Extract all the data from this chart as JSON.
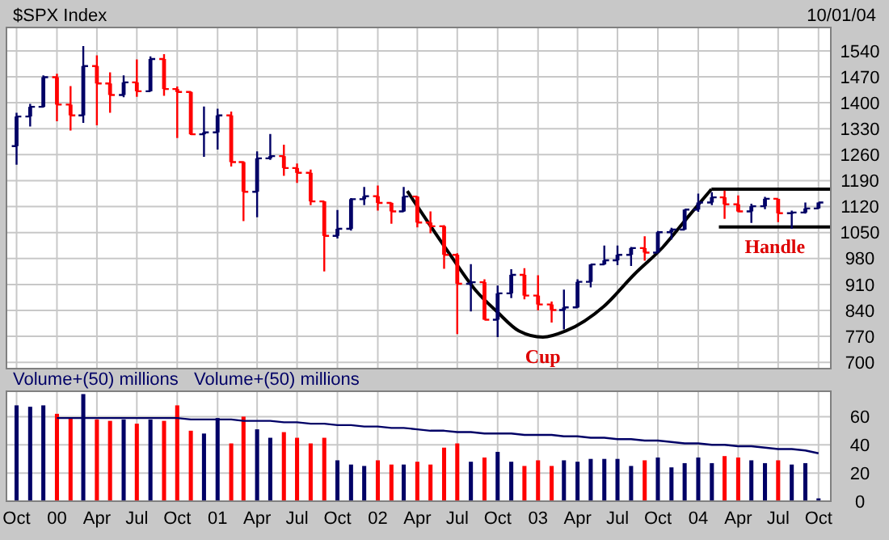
{
  "chart_data": [
    {
      "type": "candlestick",
      "title": "$SPX Index",
      "annotations": [
        "10/01/04",
        "Cup",
        "Handle"
      ],
      "x": [
        "1999-10",
        "1999-11",
        "1999-12",
        "2000-01",
        "2000-02",
        "2000-03",
        "2000-04",
        "2000-05",
        "2000-06",
        "2000-07",
        "2000-08",
        "2000-09",
        "2000-10",
        "2000-11",
        "2000-12",
        "2001-01",
        "2001-02",
        "2001-03",
        "2001-04",
        "2001-05",
        "2001-06",
        "2001-07",
        "2001-08",
        "2001-09",
        "2001-10",
        "2001-11",
        "2001-12",
        "2002-01",
        "2002-02",
        "2002-03",
        "2002-04",
        "2002-05",
        "2002-06",
        "2002-07",
        "2002-08",
        "2002-09",
        "2002-10",
        "2002-11",
        "2002-12",
        "2003-01",
        "2003-02",
        "2003-03",
        "2003-04",
        "2003-05",
        "2003-06",
        "2003-07",
        "2003-08",
        "2003-09",
        "2003-10",
        "2003-11",
        "2003-12",
        "2004-01",
        "2004-02",
        "2004-03",
        "2004-04",
        "2004-05",
        "2004-06",
        "2004-07",
        "2004-08",
        "2004-09",
        "2004-10"
      ],
      "ohlc": [
        [
          1283,
          1373,
          1233,
          1363
        ],
        [
          1363,
          1397,
          1336,
          1389
        ],
        [
          1389,
          1474,
          1387,
          1469
        ],
        [
          1469,
          1478,
          1350,
          1395
        ],
        [
          1395,
          1445,
          1325,
          1366
        ],
        [
          1366,
          1553,
          1346,
          1499
        ],
        [
          1499,
          1528,
          1339,
          1452
        ],
        [
          1452,
          1482,
          1373,
          1421
        ],
        [
          1421,
          1474,
          1415,
          1455
        ],
        [
          1455,
          1517,
          1416,
          1431
        ],
        [
          1431,
          1525,
          1430,
          1518
        ],
        [
          1518,
          1531,
          1419,
          1437
        ],
        [
          1437,
          1444,
          1305,
          1429
        ],
        [
          1429,
          1431,
          1313,
          1315
        ],
        [
          1315,
          1390,
          1254,
          1320
        ],
        [
          1320,
          1384,
          1274,
          1366
        ],
        [
          1366,
          1376,
          1228,
          1240
        ],
        [
          1240,
          1242,
          1081,
          1160
        ],
        [
          1160,
          1269,
          1091,
          1250
        ],
        [
          1250,
          1316,
          1246,
          1256
        ],
        [
          1256,
          1287,
          1203,
          1224
        ],
        [
          1224,
          1236,
          1184,
          1211
        ],
        [
          1211,
          1220,
          1124,
          1134
        ],
        [
          1134,
          1135,
          945,
          1041
        ],
        [
          1041,
          1111,
          1034,
          1060
        ],
        [
          1060,
          1143,
          1055,
          1140
        ],
        [
          1140,
          1173,
          1124,
          1148
        ],
        [
          1148,
          1177,
          1109,
          1130
        ],
        [
          1130,
          1131,
          1074,
          1107
        ],
        [
          1107,
          1173,
          1106,
          1147
        ],
        [
          1147,
          1148,
          1064,
          1077
        ],
        [
          1077,
          1107,
          1048,
          1067
        ],
        [
          1067,
          1070,
          952,
          990
        ],
        [
          990,
          994,
          776,
          912
        ],
        [
          912,
          965,
          837,
          916
        ],
        [
          916,
          924,
          815,
          815
        ],
        [
          815,
          907,
          768,
          886
        ],
        [
          886,
          951,
          873,
          936
        ],
        [
          936,
          954,
          870,
          880
        ],
        [
          880,
          935,
          840,
          856
        ],
        [
          856,
          864,
          807,
          841
        ],
        [
          841,
          896,
          789,
          848
        ],
        [
          848,
          924,
          847,
          917
        ],
        [
          917,
          965,
          902,
          964
        ],
        [
          964,
          1015,
          963,
          975
        ],
        [
          975,
          1015,
          962,
          990
        ],
        [
          990,
          1011,
          960,
          1008
        ],
        [
          1008,
          1040,
          974,
          996
        ],
        [
          996,
          1054,
          996,
          1051
        ],
        [
          1051,
          1063,
          1031,
          1058
        ],
        [
          1058,
          1112,
          1057,
          1112
        ],
        [
          1112,
          1155,
          1106,
          1131
        ],
        [
          1131,
          1159,
          1124,
          1145
        ],
        [
          1145,
          1163,
          1087,
          1126
        ],
        [
          1126,
          1150,
          1105,
          1107
        ],
        [
          1107,
          1128,
          1076,
          1121
        ],
        [
          1121,
          1146,
          1113,
          1141
        ],
        [
          1141,
          1141,
          1078,
          1102
        ],
        [
          1102,
          1109,
          1060,
          1104
        ],
        [
          1104,
          1131,
          1101,
          1115
        ],
        [
          1115,
          1131,
          1114,
          1131
        ]
      ],
      "colors": [
        "#000066",
        "#000066",
        "#000066",
        "#ff0000",
        "#ff0000",
        "#000066",
        "#ff0000",
        "#ff0000",
        "#000066",
        "#ff0000",
        "#000066",
        "#ff0000",
        "#ff0000",
        "#ff0000",
        "#000066",
        "#000066",
        "#ff0000",
        "#ff0000",
        "#000066",
        "#000066",
        "#ff0000",
        "#ff0000",
        "#ff0000",
        "#ff0000",
        "#000066",
        "#000066",
        "#000066",
        "#ff0000",
        "#ff0000",
        "#000066",
        "#ff0000",
        "#ff0000",
        "#ff0000",
        "#ff0000",
        "#000066",
        "#ff0000",
        "#000066",
        "#000066",
        "#ff0000",
        "#ff0000",
        "#ff0000",
        "#000066",
        "#000066",
        "#000066",
        "#000066",
        "#000066",
        "#000066",
        "#ff0000",
        "#000066",
        "#000066",
        "#000066",
        "#000066",
        "#000066",
        "#ff0000",
        "#ff0000",
        "#000066",
        "#000066",
        "#ff0000",
        "#000066",
        "#000066",
        "#000066"
      ],
      "series": [
        {
          "type": "line",
          "color": "#000000",
          "x": [
            "2002-03-09",
            "2002-06-12",
            "2002-08-12",
            "2002-09-30",
            "2002-11-18",
            "2003-01-12",
            "2003-03-06",
            "2003-05-31",
            "2003-08-09",
            "2003-10-12",
            "2003-12-12",
            "2004-01-31"
          ],
          "values": [
            1162,
            995,
            894,
            836,
            785,
            768,
            785,
            851,
            938,
            1010,
            1097,
            1167
          ]
        },
        {
          "type": "line",
          "color": "#000000",
          "x": [
            "2004-01-31",
            "2004-10-29"
          ],
          "values": [
            1167,
            1167
          ]
        },
        {
          "type": "line",
          "color": "#000000",
          "x": [
            "2004-02-17",
            "2004-10-29"
          ],
          "values": [
            1065,
            1065
          ]
        }
      ],
      "xlim": [
        "1999-09-08",
        "2004-10-29"
      ],
      "xticks": [
        {
          "value": "1999-10",
          "label": null
        },
        {
          "value": "2000-01",
          "label": null
        },
        {
          "value": "2000-04",
          "label": null
        },
        {
          "value": "2000-07",
          "label": null
        },
        {
          "value": "2000-10",
          "label": null
        },
        {
          "value": "2001-01",
          "label": null
        },
        {
          "value": "2001-04",
          "label": null
        },
        {
          "value": "2001-07",
          "label": null
        },
        {
          "value": "2001-10",
          "label": null
        },
        {
          "value": "2002-01",
          "label": null
        },
        {
          "value": "2002-04",
          "label": null
        },
        {
          "value": "2002-07",
          "label": null
        },
        {
          "value": "2002-10",
          "label": null
        },
        {
          "value": "2003-01",
          "label": null
        },
        {
          "value": "2003-04",
          "label": null
        },
        {
          "value": "2003-07",
          "label": null
        },
        {
          "value": "2003-10",
          "label": null
        },
        {
          "value": "2004-01",
          "label": null
        },
        {
          "value": "2004-04",
          "label": null
        },
        {
          "value": "2004-07",
          "label": null
        },
        {
          "value": "2004-10",
          "label": null
        }
      ],
      "ylim": [
        683,
        1603
      ],
      "yticks": [
        700,
        770,
        840,
        910,
        980,
        1050,
        1120,
        1190,
        1260,
        1330,
        1400,
        1470,
        1540
      ],
      "grid": true,
      "tick_labels": "y"
    },
    {
      "type": "bar",
      "title": "Volume+(50) millions",
      "annotations": [
        "Volume+(50) millions"
      ],
      "x": [
        "1999-10",
        "1999-11",
        "1999-12",
        "2000-01",
        "2000-02",
        "2000-03",
        "2000-04",
        "2000-05",
        "2000-06",
        "2000-07",
        "2000-08",
        "2000-09",
        "2000-10",
        "2000-11",
        "2000-12",
        "2001-01",
        "2001-02",
        "2001-03",
        "2001-04",
        "2001-05",
        "2001-06",
        "2001-07",
        "2001-08",
        "2001-09",
        "2001-10",
        "2001-11",
        "2001-12",
        "2002-01",
        "2002-02",
        "2002-03",
        "2002-04",
        "2002-05",
        "2002-06",
        "2002-07",
        "2002-08",
        "2002-09",
        "2002-10",
        "2002-11",
        "2002-12",
        "2003-01",
        "2003-02",
        "2003-03",
        "2003-04",
        "2003-05",
        "2003-06",
        "2003-07",
        "2003-08",
        "2003-09",
        "2003-10",
        "2003-11",
        "2003-12",
        "2004-01",
        "2004-02",
        "2004-03",
        "2004-04",
        "2004-05",
        "2004-06",
        "2004-07",
        "2004-08",
        "2004-09",
        "2004-10"
      ],
      "series": [
        {
          "type": "bar",
          "colors": [
            "#000066",
            "#000066",
            "#000066",
            "#ff0000",
            "#ff0000",
            "#000066",
            "#ff0000",
            "#ff0000",
            "#000066",
            "#ff0000",
            "#000066",
            "#ff0000",
            "#ff0000",
            "#ff0000",
            "#000066",
            "#000066",
            "#ff0000",
            "#ff0000",
            "#000066",
            "#000066",
            "#ff0000",
            "#ff0000",
            "#ff0000",
            "#ff0000",
            "#000066",
            "#000066",
            "#000066",
            "#ff0000",
            "#ff0000",
            "#000066",
            "#ff0000",
            "#ff0000",
            "#ff0000",
            "#ff0000",
            "#000066",
            "#ff0000",
            "#000066",
            "#000066",
            "#ff0000",
            "#ff0000",
            "#ff0000",
            "#000066",
            "#000066",
            "#000066",
            "#000066",
            "#000066",
            "#000066",
            "#ff0000",
            "#000066",
            "#000066",
            "#000066",
            "#000066",
            "#000066",
            "#ff0000",
            "#ff0000",
            "#000066",
            "#000066",
            "#ff0000",
            "#000066",
            "#000066",
            "#000066"
          ],
          "values": [
            68,
            67,
            68,
            62,
            59,
            76,
            58,
            57,
            58,
            55,
            58,
            57,
            68,
            50,
            48,
            59,
            41,
            60,
            51,
            45,
            49,
            45,
            41,
            45,
            29,
            26,
            25,
            29,
            26,
            26,
            28,
            26,
            38,
            41,
            28,
            31,
            35,
            28,
            25,
            29,
            25,
            29,
            28,
            30,
            30,
            30,
            25,
            29,
            31,
            24,
            27,
            31,
            27,
            32,
            31,
            29,
            27,
            29,
            26,
            27,
            2
          ]
        },
        {
          "type": "line",
          "color": "#000066",
          "values": [
            null,
            null,
            null,
            59,
            59,
            59,
            59,
            59,
            59,
            59,
            59,
            59,
            59,
            58,
            58,
            58,
            58,
            57,
            57,
            57,
            56,
            56,
            55,
            55,
            54,
            54,
            53,
            53,
            52,
            52,
            51,
            50,
            50,
            49,
            49,
            48,
            48,
            48,
            47,
            47,
            47,
            46,
            46,
            45,
            45,
            44,
            44,
            43,
            43,
            42,
            41,
            41,
            40,
            40,
            39,
            39,
            38,
            37,
            37,
            36,
            34
          ]
        }
      ],
      "xlim": [
        "1999-09-08",
        "2004-10-29"
      ],
      "xticks": [
        {
          "value": "1999-10",
          "label": "Oct"
        },
        {
          "value": "2000-01",
          "label": "00"
        },
        {
          "value": "2000-04",
          "label": "Apr"
        },
        {
          "value": "2000-07",
          "label": "Jul"
        },
        {
          "value": "2000-10",
          "label": "Oct"
        },
        {
          "value": "2001-01",
          "label": "01"
        },
        {
          "value": "2001-04",
          "label": "Apr"
        },
        {
          "value": "2001-07",
          "label": "Jul"
        },
        {
          "value": "2001-10",
          "label": "Oct"
        },
        {
          "value": "2002-01",
          "label": "02"
        },
        {
          "value": "2002-04",
          "label": "Apr"
        },
        {
          "value": "2002-07",
          "label": "Jul"
        },
        {
          "value": "2002-10",
          "label": "Oct"
        },
        {
          "value": "2003-01",
          "label": "03"
        },
        {
          "value": "2003-04",
          "label": "Apr"
        },
        {
          "value": "2003-07",
          "label": "Jul"
        },
        {
          "value": "2003-10",
          "label": "Oct"
        },
        {
          "value": "2004-01",
          "label": "04"
        },
        {
          "value": "2004-04",
          "label": "Apr"
        },
        {
          "value": "2004-07",
          "label": "Jul"
        },
        {
          "value": "2004-10",
          "label": "Oct"
        }
      ],
      "ylim": [
        0,
        78
      ],
      "yticks": [
        0,
        20,
        40,
        60
      ],
      "grid": true
    }
  ]
}
